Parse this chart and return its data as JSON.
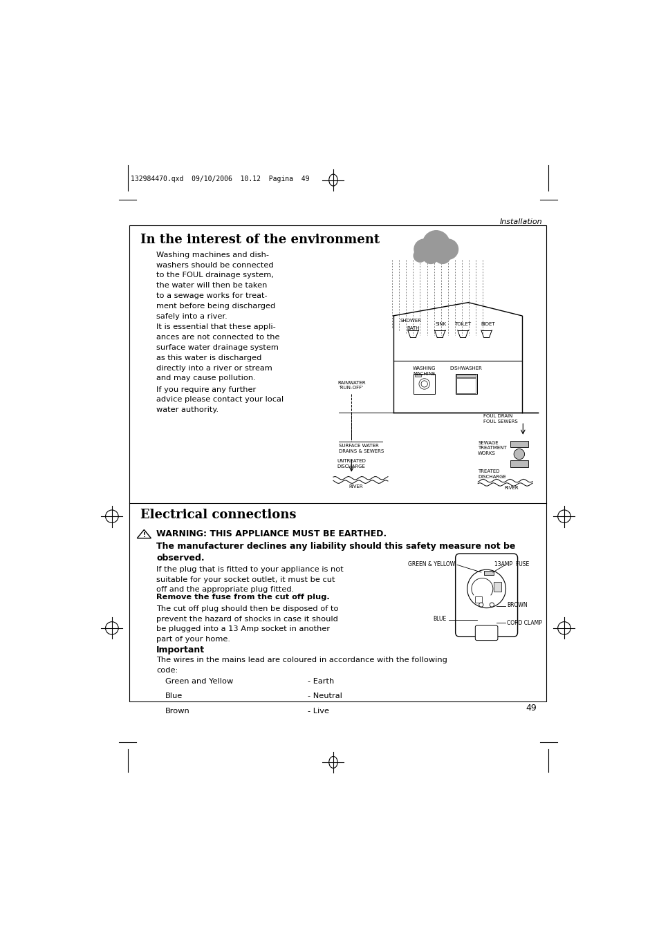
{
  "background_color": "#ffffff",
  "page_width": 9.54,
  "page_height": 13.5,
  "header_text": "132984470.qxd  09/10/2006  10.12  Pagina  49",
  "header_label": "Installation",
  "section1_title": "In the interest of the environment",
  "section1_para1": "Washing machines and dish-\nwashers should be connected\nto the FOUL drainage system,\nthe water will then be taken\nto a sewage works for treat-\nment before being discharged\nsafely into a river.",
  "section1_para2": "It is essential that these appli-\nances are not connected to the\nsurface water drainage system\nas this water is discharged\ndirectly into a river or stream\nand may cause pollution.",
  "section1_para3": "If you require any further\nadvice please contact your local\nwater authority.",
  "section2_title": "Electrical connections",
  "warning_line1": "WARNING: THIS APPLIANCE MUST BE EARTHED.",
  "warning_line2": "The manufacturer declines any liability should this safety measure not be\nobserved.",
  "elec_para1": "If the plug that is fitted to your appliance is not\nsuitable for your socket outlet, it must be cut\noff and the appropriate plug fitted.",
  "elec_para2": "Remove the fuse from the cut off plug.",
  "elec_para3": "The cut off plug should then be disposed of to\nprevent the hazard of shocks in case it should\nbe plugged into a 13 Amp socket in another\npart of your home.",
  "important_label": "Important",
  "important_para": "The wires in the mains lead are coloured in accordance with the following\ncode:",
  "wire_colors": [
    "Green and Yellow",
    "Blue",
    "Brown"
  ],
  "wire_meanings": [
    "- Earth",
    "- Neutral",
    "- Live"
  ],
  "page_number": "49"
}
